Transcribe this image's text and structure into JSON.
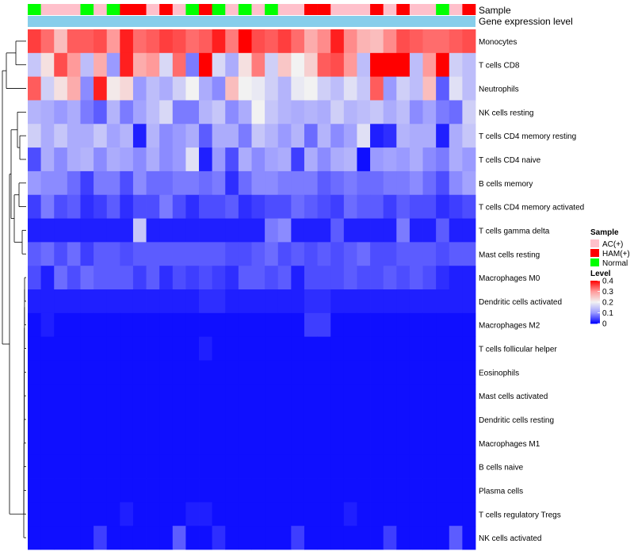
{
  "chart_data": {
    "type": "heatmap",
    "title": "",
    "annotation_rows": {
      "sample_label": "Sample",
      "gene_label": "Gene expression level",
      "sample_order": [
        "Normal",
        "AC(+)",
        "AC(+)",
        "AC(+)",
        "Normal",
        "AC(+)",
        "Normal",
        "HAM(+)",
        "HAM(+)",
        "AC(+)",
        "HAM(+)",
        "AC(+)",
        "Normal",
        "HAM(+)",
        "Normal",
        "AC(+)",
        "Normal",
        "AC(+)",
        "Normal",
        "AC(+)",
        "AC(+)",
        "HAM(+)",
        "HAM(+)",
        "AC(+)",
        "AC(+)",
        "AC(+)",
        "HAM(+)",
        "AC(+)",
        "HAM(+)",
        "AC(+)",
        "AC(+)",
        "Normal",
        "AC(+)",
        "HAM(+)"
      ]
    },
    "rows": [
      "Monocytes",
      "T cells CD8",
      "Neutrophils",
      "NK cells resting",
      "T cells CD4 memory resting",
      "T cells CD4 naive",
      "B cells memory",
      "T cells CD4 memory activated",
      "T cells gamma delta",
      "Mast cells resting",
      "Macrophages M0",
      "Dendritic cells activated",
      "Macrophages M2",
      "T cells follicular helper",
      "Eosinophils",
      "Mast cells activated",
      "Dendritic cells resting",
      "Macrophages M1",
      "B cells naive",
      "Plasma cells",
      "T cells regulatory  Tregs",
      "NK cells activated"
    ],
    "values": [
      [
        0.36,
        0.33,
        0.26,
        0.34,
        0.34,
        0.35,
        0.3,
        0.38,
        0.33,
        0.34,
        0.36,
        0.35,
        0.33,
        0.34,
        0.38,
        0.32,
        0.4,
        0.35,
        0.34,
        0.36,
        0.33,
        0.28,
        0.31,
        0.38,
        0.31,
        0.27,
        0.26,
        0.31,
        0.35,
        0.34,
        0.33,
        0.33,
        0.34,
        0.35
      ],
      [
        0.15,
        0.22,
        0.35,
        0.3,
        0.14,
        0.28,
        0.1,
        0.38,
        0.28,
        0.3,
        0.17,
        0.33,
        0.08,
        0.42,
        0.17,
        0.12,
        0.22,
        0.32,
        0.16,
        0.25,
        0.2,
        0.24,
        0.34,
        0.35,
        0.3,
        0.14,
        0.42,
        0.44,
        0.43,
        0.14,
        0.3,
        0.41,
        0.16,
        0.14
      ],
      [
        0.34,
        0.16,
        0.22,
        0.28,
        0.09,
        0.38,
        0.21,
        0.23,
        0.1,
        0.14,
        0.12,
        0.16,
        0.2,
        0.12,
        0.09,
        0.26,
        0.2,
        0.19,
        0.16,
        0.13,
        0.19,
        0.2,
        0.16,
        0.14,
        0.18,
        0.15,
        0.34,
        0.1,
        0.16,
        0.14,
        0.26,
        0.06,
        0.18,
        0.14
      ],
      [
        0.13,
        0.12,
        0.1,
        0.12,
        0.08,
        0.06,
        0.13,
        0.08,
        0.11,
        0.14,
        0.17,
        0.08,
        0.08,
        0.13,
        0.15,
        0.09,
        0.12,
        0.2,
        0.15,
        0.13,
        0.12,
        0.13,
        0.12,
        0.16,
        0.13,
        0.14,
        0.15,
        0.12,
        0.14,
        0.09,
        0.11,
        0.08,
        0.07,
        0.16
      ],
      [
        0.16,
        0.12,
        0.15,
        0.12,
        0.12,
        0.15,
        0.11,
        0.13,
        0.02,
        0.13,
        0.09,
        0.1,
        0.12,
        0.06,
        0.12,
        0.12,
        0.08,
        0.15,
        0.13,
        0.1,
        0.13,
        0.07,
        0.13,
        0.09,
        0.11,
        0.18,
        0.02,
        0.03,
        0.13,
        0.12,
        0.12,
        0.02,
        0.12,
        0.15
      ],
      [
        0.05,
        0.12,
        0.09,
        0.12,
        0.13,
        0.09,
        0.12,
        0.11,
        0.09,
        0.12,
        0.09,
        0.1,
        0.18,
        0.02,
        0.1,
        0.05,
        0.12,
        0.09,
        0.11,
        0.12,
        0.04,
        0.12,
        0.09,
        0.12,
        0.13,
        0.01,
        0.1,
        0.11,
        0.1,
        0.12,
        0.09,
        0.08,
        0.12,
        0.1
      ],
      [
        0.1,
        0.09,
        0.09,
        0.07,
        0.04,
        0.08,
        0.08,
        0.05,
        0.09,
        0.07,
        0.07,
        0.08,
        0.08,
        0.07,
        0.08,
        0.03,
        0.07,
        0.09,
        0.09,
        0.08,
        0.08,
        0.08,
        0.06,
        0.07,
        0.08,
        0.07,
        0.07,
        0.08,
        0.08,
        0.09,
        0.07,
        0.05,
        0.09,
        0.11
      ],
      [
        0.04,
        0.08,
        0.05,
        0.06,
        0.03,
        0.04,
        0.06,
        0.03,
        0.05,
        0.05,
        0.08,
        0.05,
        0.03,
        0.05,
        0.05,
        0.06,
        0.03,
        0.04,
        0.05,
        0.05,
        0.07,
        0.06,
        0.05,
        0.04,
        0.07,
        0.06,
        0.06,
        0.04,
        0.06,
        0.05,
        0.05,
        0.03,
        0.04,
        0.05
      ],
      [
        0.02,
        0.02,
        0.02,
        0.02,
        0.02,
        0.02,
        0.02,
        0.02,
        0.15,
        0.02,
        0.02,
        0.02,
        0.02,
        0.02,
        0.02,
        0.02,
        0.02,
        0.02,
        0.08,
        0.09,
        0.02,
        0.02,
        0.02,
        0.06,
        0.02,
        0.02,
        0.02,
        0.02,
        0.08,
        0.02,
        0.02,
        0.06,
        0.02,
        0.02
      ],
      [
        0.06,
        0.07,
        0.05,
        0.07,
        0.04,
        0.06,
        0.06,
        0.05,
        0.06,
        0.06,
        0.06,
        0.06,
        0.06,
        0.06,
        0.06,
        0.05,
        0.05,
        0.06,
        0.07,
        0.05,
        0.06,
        0.05,
        0.06,
        0.05,
        0.06,
        0.07,
        0.05,
        0.05,
        0.06,
        0.06,
        0.06,
        0.05,
        0.06,
        0.06
      ],
      [
        0.05,
        0.02,
        0.07,
        0.05,
        0.07,
        0.06,
        0.06,
        0.06,
        0.04,
        0.06,
        0.03,
        0.05,
        0.04,
        0.05,
        0.04,
        0.03,
        0.06,
        0.06,
        0.05,
        0.06,
        0.02,
        0.05,
        0.05,
        0.05,
        0.06,
        0.05,
        0.05,
        0.06,
        0.05,
        0.06,
        0.05,
        0.03,
        0.02,
        0.02
      ],
      [
        0.02,
        0.02,
        0.02,
        0.02,
        0.02,
        0.02,
        0.02,
        0.02,
        0.02,
        0.02,
        0.02,
        0.02,
        0.02,
        0.03,
        0.03,
        0.02,
        0.02,
        0.02,
        0.02,
        0.02,
        0.02,
        0.03,
        0.03,
        0.02,
        0.02,
        0.02,
        0.02,
        0.02,
        0.02,
        0.02,
        0.02,
        0.02,
        0.02,
        0.02
      ],
      [
        0.01,
        0.02,
        0.01,
        0.01,
        0.01,
        0.01,
        0.01,
        0.01,
        0.01,
        0.01,
        0.01,
        0.01,
        0.01,
        0.01,
        0.01,
        0.01,
        0.01,
        0.01,
        0.01,
        0.01,
        0.01,
        0.04,
        0.04,
        0.01,
        0.01,
        0.01,
        0.01,
        0.01,
        0.01,
        0.01,
        0.01,
        0.01,
        0.01,
        0.01
      ],
      [
        0.01,
        0.01,
        0.01,
        0.01,
        0.01,
        0.01,
        0.01,
        0.01,
        0.01,
        0.01,
        0.01,
        0.01,
        0.01,
        0.02,
        0.01,
        0.01,
        0.01,
        0.01,
        0.01,
        0.01,
        0.01,
        0.01,
        0.01,
        0.01,
        0.01,
        0.01,
        0.01,
        0.01,
        0.01,
        0.01,
        0.01,
        0.01,
        0.01,
        0.01
      ],
      [
        0.01,
        0.01,
        0.01,
        0.01,
        0.01,
        0.01,
        0.01,
        0.01,
        0.01,
        0.01,
        0.01,
        0.01,
        0.01,
        0.01,
        0.01,
        0.01,
        0.01,
        0.01,
        0.01,
        0.01,
        0.01,
        0.01,
        0.01,
        0.01,
        0.01,
        0.01,
        0.01,
        0.01,
        0.01,
        0.01,
        0.01,
        0.01,
        0.01,
        0.01
      ],
      [
        0.01,
        0.01,
        0.01,
        0.01,
        0.01,
        0.01,
        0.01,
        0.01,
        0.01,
        0.01,
        0.01,
        0.01,
        0.01,
        0.01,
        0.01,
        0.01,
        0.01,
        0.01,
        0.01,
        0.01,
        0.01,
        0.01,
        0.01,
        0.01,
        0.01,
        0.01,
        0.01,
        0.01,
        0.01,
        0.01,
        0.01,
        0.01,
        0.01,
        0.01
      ],
      [
        0.01,
        0.01,
        0.01,
        0.01,
        0.01,
        0.01,
        0.01,
        0.01,
        0.01,
        0.01,
        0.01,
        0.01,
        0.01,
        0.01,
        0.01,
        0.01,
        0.01,
        0.01,
        0.01,
        0.01,
        0.01,
        0.01,
        0.01,
        0.01,
        0.01,
        0.01,
        0.01,
        0.01,
        0.01,
        0.01,
        0.01,
        0.01,
        0.01,
        0.01
      ],
      [
        0.01,
        0.01,
        0.01,
        0.01,
        0.01,
        0.01,
        0.01,
        0.01,
        0.01,
        0.01,
        0.01,
        0.01,
        0.01,
        0.01,
        0.01,
        0.01,
        0.01,
        0.01,
        0.01,
        0.01,
        0.01,
        0.01,
        0.01,
        0.01,
        0.01,
        0.01,
        0.01,
        0.01,
        0.01,
        0.01,
        0.01,
        0.01,
        0.01,
        0.01
      ],
      [
        0.01,
        0.01,
        0.01,
        0.01,
        0.01,
        0.01,
        0.01,
        0.01,
        0.01,
        0.01,
        0.01,
        0.01,
        0.01,
        0.01,
        0.01,
        0.01,
        0.01,
        0.01,
        0.01,
        0.01,
        0.01,
        0.01,
        0.01,
        0.01,
        0.01,
        0.01,
        0.01,
        0.01,
        0.01,
        0.01,
        0.01,
        0.01,
        0.01,
        0.01
      ],
      [
        0.01,
        0.01,
        0.01,
        0.01,
        0.01,
        0.01,
        0.01,
        0.01,
        0.01,
        0.01,
        0.01,
        0.01,
        0.01,
        0.01,
        0.01,
        0.01,
        0.01,
        0.01,
        0.01,
        0.01,
        0.01,
        0.01,
        0.01,
        0.01,
        0.01,
        0.01,
        0.01,
        0.01,
        0.01,
        0.01,
        0.01,
        0.01,
        0.01,
        0.01
      ],
      [
        0.01,
        0.01,
        0.01,
        0.01,
        0.01,
        0.01,
        0.01,
        0.02,
        0.01,
        0.01,
        0.01,
        0.01,
        0.02,
        0.02,
        0.01,
        0.01,
        0.01,
        0.01,
        0.01,
        0.01,
        0.01,
        0.01,
        0.01,
        0.01,
        0.02,
        0.01,
        0.01,
        0.01,
        0.01,
        0.01,
        0.01,
        0.01,
        0.01,
        0.01
      ],
      [
        0.01,
        0.01,
        0.01,
        0.01,
        0.01,
        0.04,
        0.01,
        0.01,
        0.01,
        0.01,
        0.01,
        0.06,
        0.01,
        0.01,
        0.03,
        0.01,
        0.01,
        0.01,
        0.01,
        0.01,
        0.04,
        0.01,
        0.01,
        0.01,
        0.01,
        0.01,
        0.01,
        0.04,
        0.01,
        0.01,
        0.01,
        0.01,
        0.06,
        0.01
      ]
    ],
    "color_scale": {
      "stops": [
        0,
        0.1,
        0.2,
        0.3,
        0.4
      ],
      "colors": [
        "#0000ff",
        "#9a9aff",
        "#f2f2f2",
        "#ff9a9a",
        "#ff0000"
      ]
    },
    "legend": {
      "sample_title": "Sample",
      "sample_entries": [
        {
          "label": "AC(+)",
          "color": "#ffc0cb"
        },
        {
          "label": "HAM(+)",
          "color": "#ff0000"
        },
        {
          "label": "Normal",
          "color": "#00ff00"
        }
      ],
      "level_title": "Level",
      "level_ticks": [
        "0.4",
        "0.3",
        "0.2",
        "0.1",
        "0"
      ],
      "level_tick_values": [
        0.4,
        0.3,
        0.2,
        0.1,
        0
      ]
    },
    "gene_bar_color": "#87ceeb",
    "dendrogram_color": "#000000"
  }
}
